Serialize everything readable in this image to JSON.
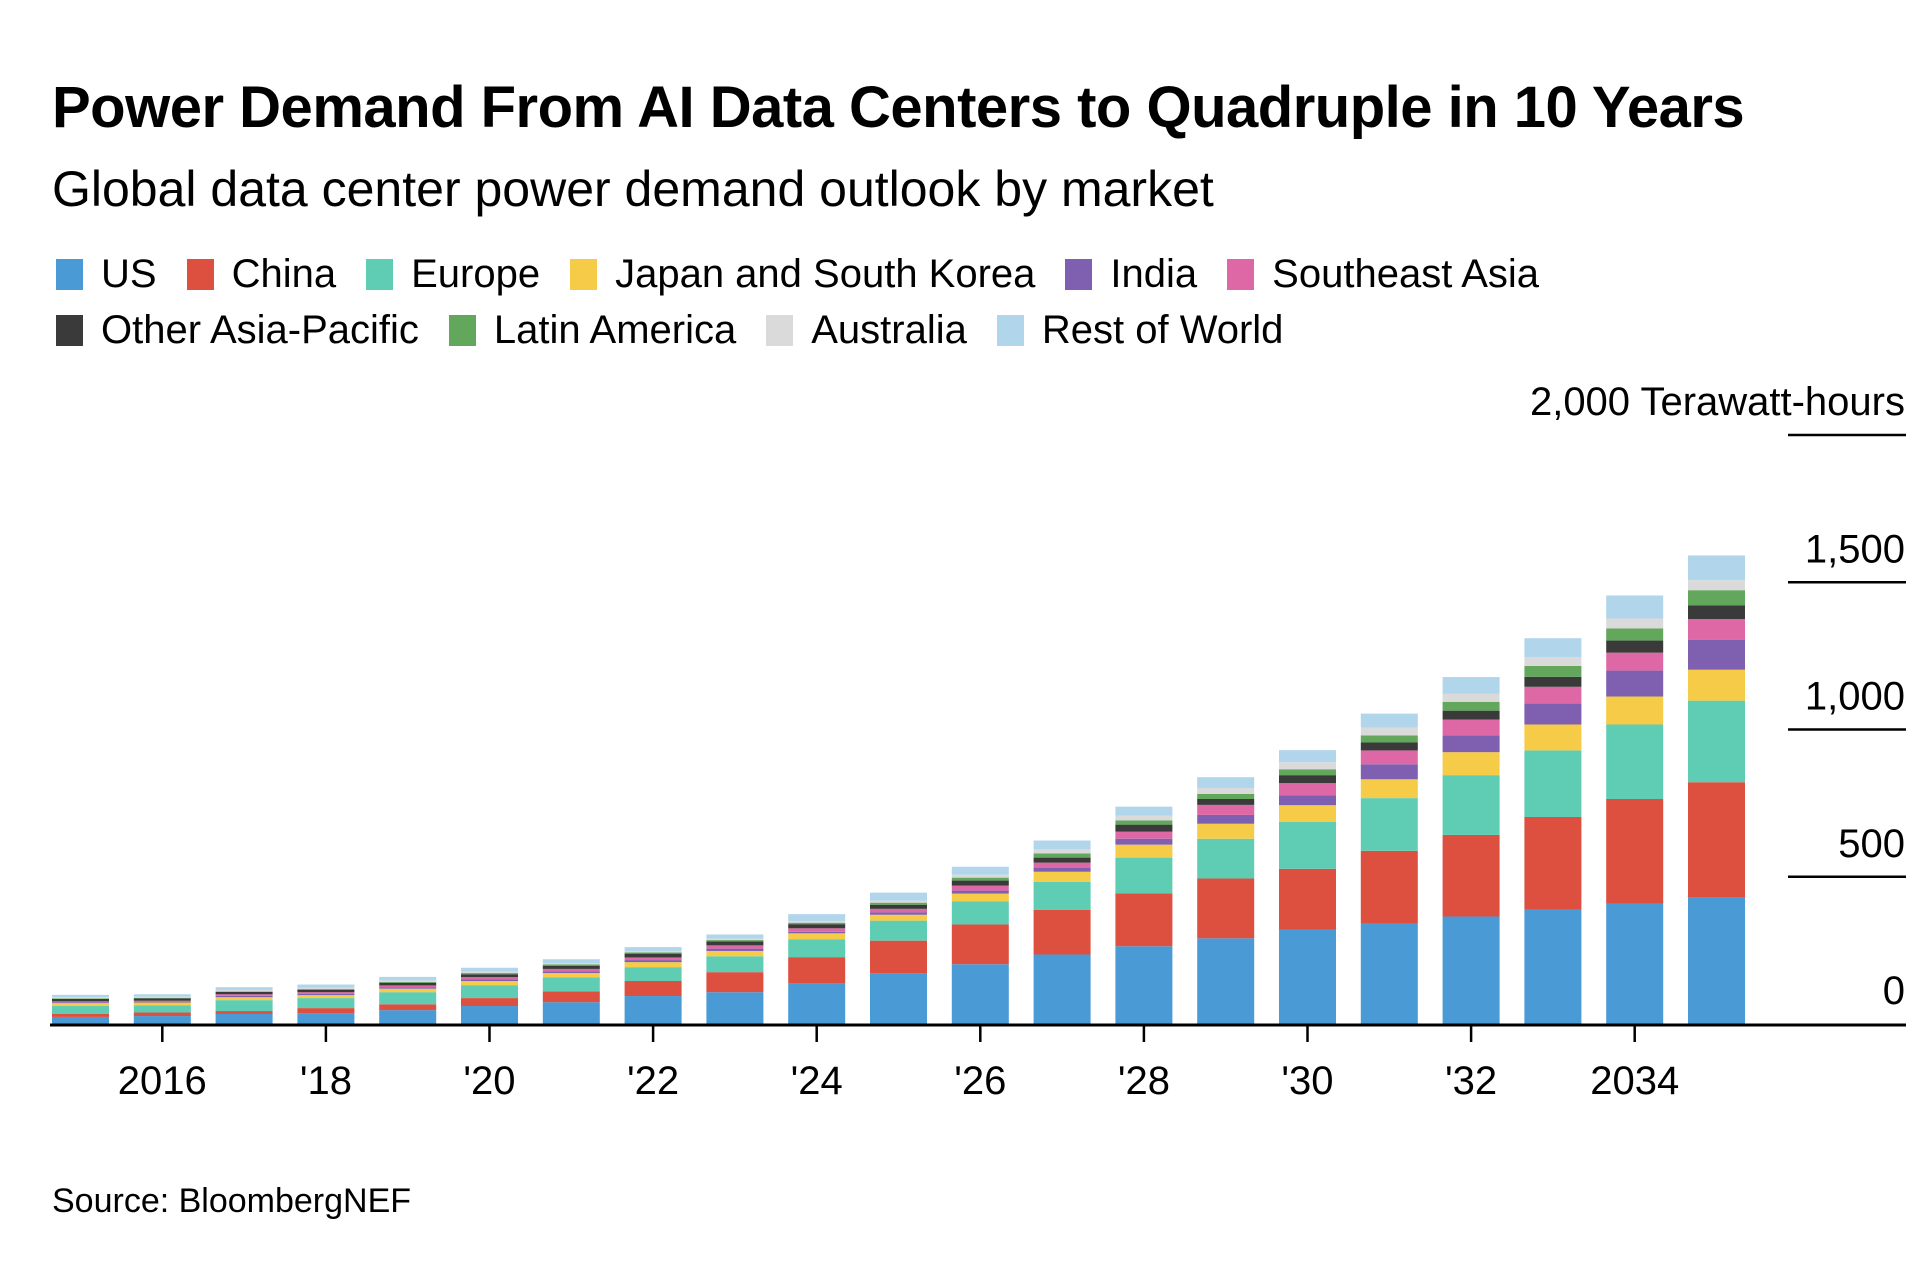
{
  "header": {
    "title": "Power Demand From AI Data Centers to Quadruple in 10 Years",
    "subtitle": "Global data center power demand outlook by market"
  },
  "source": "Source: BloombergNEF",
  "chart_data": {
    "type": "bar",
    "stacked": true,
    "title": "Power Demand From AI Data Centers to Quadruple in 10 Years",
    "subtitle": "Global data center power demand outlook by market",
    "xlabel": "",
    "ylabel": "Terawatt-hours",
    "unit_label": "2,000 Terawatt-hours",
    "ylim": [
      0,
      2000
    ],
    "yticks": [
      0,
      500,
      1000,
      1500,
      2000
    ],
    "ytick_labels": [
      "0",
      "500",
      "1,000",
      "1,500",
      "2,000 Terawatt-hours"
    ],
    "y_axis_side": "right",
    "grid": true,
    "legend_position": "top-left",
    "categories": [
      2015,
      2016,
      2017,
      2018,
      2019,
      2020,
      2021,
      2022,
      2023,
      2024,
      2025,
      2026,
      2027,
      2028,
      2029,
      2030,
      2031,
      2032,
      2033,
      2034,
      2035
    ],
    "xticks": [
      2016,
      2018,
      2020,
      2022,
      2024,
      2026,
      2028,
      2030,
      2032,
      2034
    ],
    "xtick_labels": [
      "2016",
      "'18",
      "'20",
      "'22",
      "'24",
      "'26",
      "'28",
      "'30",
      "'32",
      "2034"
    ],
    "series": [
      {
        "name": "US",
        "color": "#4a9ad6",
        "values": [
          24,
          27,
          34,
          37,
          47,
          61,
          74,
          95,
          108,
          139,
          172,
          203,
          236,
          264,
          291,
          321,
          341,
          365,
          389,
          409,
          429
        ]
      },
      {
        "name": "China",
        "color": "#dd5040",
        "values": [
          10,
          12,
          10,
          17,
          20,
          27,
          37,
          51,
          68,
          88,
          111,
          135,
          152,
          179,
          203,
          206,
          247,
          277,
          314,
          355,
          392
        ]
      },
      {
        "name": "Europe",
        "color": "#5ecdb3",
        "values": [
          27,
          24,
          37,
          34,
          41,
          44,
          47,
          47,
          54,
          61,
          68,
          78,
          95,
          122,
          135,
          159,
          179,
          203,
          226,
          253,
          277
        ]
      },
      {
        "name": "Japan and South Korea",
        "color": "#f6cb47",
        "values": [
          10,
          10,
          10,
          10,
          12,
          14,
          15,
          17,
          18,
          20,
          20,
          27,
          34,
          44,
          51,
          57,
          64,
          78,
          88,
          95,
          105
        ]
      },
      {
        "name": "India",
        "color": "#7f5fb0",
        "values": [
          3,
          3,
          5,
          5,
          5,
          6,
          6,
          7,
          8,
          5,
          8,
          10,
          14,
          20,
          30,
          34,
          51,
          57,
          71,
          88,
          101
        ]
      },
      {
        "name": "Southeast Asia",
        "color": "#dd68a5",
        "values": [
          3,
          3,
          5,
          5,
          6,
          7,
          8,
          9,
          11,
          12,
          12,
          17,
          17,
          24,
          34,
          41,
          47,
          54,
          57,
          61,
          71
        ]
      },
      {
        "name": "Other Asia-Pacific",
        "color": "#3a3a3a",
        "values": [
          8,
          8,
          8,
          8,
          9,
          10,
          11,
          13,
          13,
          14,
          14,
          17,
          17,
          24,
          20,
          27,
          27,
          30,
          34,
          41,
          47
        ]
      },
      {
        "name": "Latin America",
        "color": "#63a75d",
        "values": [
          2,
          2,
          2,
          3,
          3,
          4,
          4,
          4,
          5,
          5,
          7,
          10,
          14,
          14,
          17,
          20,
          24,
          30,
          37,
          41,
          51
        ]
      },
      {
        "name": "Australia",
        "color": "#dadada",
        "values": [
          4,
          4,
          4,
          5,
          5,
          5,
          5,
          5,
          5,
          5,
          7,
          10,
          14,
          17,
          20,
          24,
          27,
          27,
          30,
          34,
          34
        ]
      },
      {
        "name": "Rest of World",
        "color": "#b1d5ea",
        "values": [
          8,
          8,
          10,
          10,
          12,
          13,
          13,
          13,
          14,
          24,
          27,
          27,
          30,
          30,
          37,
          41,
          47,
          57,
          64,
          78,
          84
        ]
      }
    ]
  },
  "legend": {
    "rows": [
      [
        {
          "label": "US",
          "color": "#4a9ad6"
        },
        {
          "label": "China",
          "color": "#dd5040"
        },
        {
          "label": "Europe",
          "color": "#5ecdb3"
        },
        {
          "label": "Japan and South Korea",
          "color": "#f6cb47"
        },
        {
          "label": "India",
          "color": "#7f5fb0"
        },
        {
          "label": "Southeast Asia",
          "color": "#dd68a5"
        }
      ],
      [
        {
          "label": "Other Asia-Pacific",
          "color": "#3a3a3a"
        },
        {
          "label": "Latin America",
          "color": "#63a75d"
        },
        {
          "label": "Australia",
          "color": "#dadada"
        },
        {
          "label": "Rest of World",
          "color": "#b1d5ea"
        }
      ]
    ]
  }
}
